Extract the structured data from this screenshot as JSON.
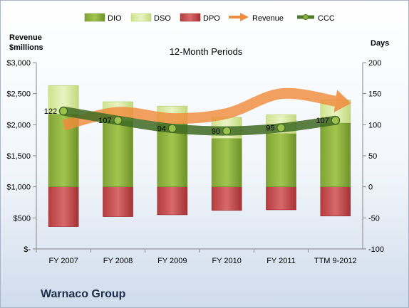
{
  "chart_data": {
    "type": "bar",
    "title": "12-Month Periods",
    "company": "Warnaco Group",
    "left_axis_label": [
      "Revenue",
      "$millions"
    ],
    "right_axis_label": "Days",
    "categories": [
      "FY 2007",
      "FY 2008",
      "FY 2009",
      "FY 2010",
      "FY 2011",
      "TTM 9-2012"
    ],
    "left_axis": {
      "ylim": [
        0,
        3000
      ],
      "ticks": [
        "$-",
        "$500",
        "$1,000",
        "$1,500",
        "$2,000",
        "$2,500",
        "$3,000"
      ]
    },
    "right_axis": {
      "ylim": [
        -100,
        200
      ],
      "ticks": [
        "-100",
        "-50",
        "0",
        "50",
        "100",
        "150",
        "200"
      ]
    },
    "legend": {
      "position": "top",
      "items": [
        "DIO",
        "DSO",
        "DPO",
        "Revenue",
        "CCC"
      ]
    },
    "series": [
      {
        "name": "DIO",
        "axis": "right",
        "values": [
          117,
          106,
          102,
          78,
          86,
          103
        ]
      },
      {
        "name": "DSO",
        "axis": "right",
        "values": [
          46,
          31,
          28,
          34,
          30,
          37
        ]
      },
      {
        "name": "DPO",
        "axis": "right",
        "values": [
          -64,
          -48,
          -45,
          -38,
          -37,
          -47
        ]
      },
      {
        "name": "CCC",
        "axis": "right",
        "values": [
          122,
          107,
          94,
          90,
          95,
          107
        ],
        "labels": [
          "122",
          "107",
          "94",
          "90",
          "95",
          "107"
        ]
      },
      {
        "name": "Revenue",
        "axis": "left",
        "values": [
          1990,
          2200,
          2100,
          2180,
          2500,
          2380
        ]
      }
    ],
    "colors": {
      "dio": "#8bb03c",
      "dso": "#d7ea9c",
      "dpo": "#c4484a",
      "revenue": "#f08c3c",
      "ccc": "#4e7a2a"
    },
    "grid": false
  }
}
